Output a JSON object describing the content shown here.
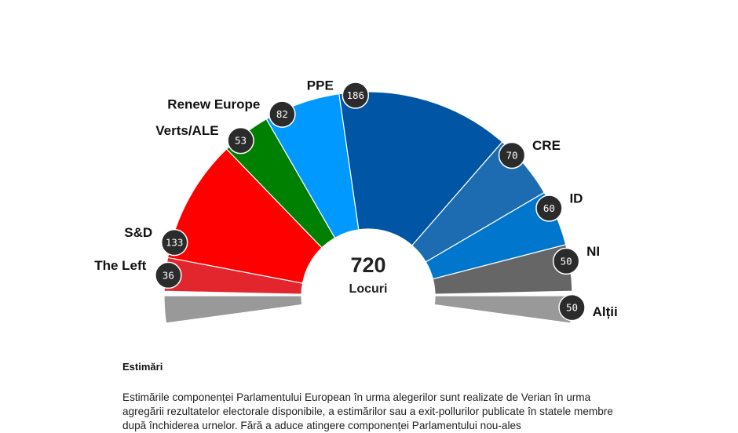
{
  "chart_data": {
    "type": "parliament",
    "total": 720,
    "total_label": "Locuri",
    "series": [
      {
        "name": "The Left",
        "seats": 36,
        "color": "#e3262d"
      },
      {
        "name": "S&D",
        "seats": 133,
        "color": "#ff0000"
      },
      {
        "name": "Verts/ALE",
        "seats": 53,
        "color": "#008000"
      },
      {
        "name": "Renew Europe",
        "seats": 82,
        "color": "#0099ff"
      },
      {
        "name": "PPE",
        "seats": 186,
        "color": "#0055a4"
      },
      {
        "name": "CRE",
        "seats": 70,
        "color": "#1d6cb2"
      },
      {
        "name": "ID",
        "seats": 60,
        "color": "#0077cc"
      },
      {
        "name": "NI",
        "seats": 50,
        "color": "#666666"
      },
      {
        "name": "Alții",
        "seats": 50,
        "color": "#999999"
      }
    ],
    "badge_color": "#2b2b2b"
  },
  "notes": {
    "title": "Estimări",
    "body": "Estimările componenței Parlamentului European în urma alegerilor sunt realizate de Verian în urma agregării rezultatelor electorale disponibile, a estimărilor sau a exit-pollurilor publicate în statele membre după închiderea urnelor. Fără a aduce atingere componenței Parlamentului nou-ales"
  }
}
